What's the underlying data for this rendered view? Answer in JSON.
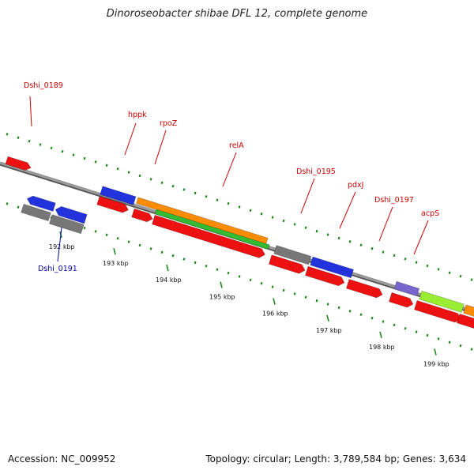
{
  "title": "Dinoroseobacter shibae DFL 12, complete genome",
  "footer": {
    "accession": "Accession: NC_009952",
    "summary": "Topology: circular; Length: 3,789,584 bp; Genes: 3,634"
  },
  "colors": {
    "backbone": "#9a9a9a",
    "tick": "#1f8a1f",
    "label_default": "#cc0000",
    "label_highlight": "#0000aa",
    "cds": "#ee1111",
    "trna": "#2233dd",
    "pseudo": "#777777",
    "rrna": "#ff8c00",
    "misc": "#33bb33",
    "other": "#7766cc",
    "lime": "#99ee33"
  },
  "scale": {
    "ticks": [
      {
        "label": "192 kbp"
      },
      {
        "label": "193 kbp"
      },
      {
        "label": "194 kbp"
      },
      {
        "label": "195 kbp"
      },
      {
        "label": "196 kbp"
      },
      {
        "label": "197 kbp"
      },
      {
        "label": "198 kbp"
      },
      {
        "label": "199 kbp"
      }
    ]
  },
  "labels": [
    {
      "text": "Dshi_0189",
      "color": "#cc0000"
    },
    {
      "text": "hppk",
      "color": "#cc0000"
    },
    {
      "text": "rpoZ",
      "color": "#cc0000"
    },
    {
      "text": "relA",
      "color": "#cc0000"
    },
    {
      "text": "Dshi_0195",
      "color": "#cc0000"
    },
    {
      "text": "pdxJ",
      "color": "#cc0000"
    },
    {
      "text": "Dshi_0197",
      "color": "#cc0000"
    },
    {
      "text": "acpS",
      "color": "#cc0000"
    },
    {
      "text": "Dshi_0191",
      "color": "#0000aa"
    }
  ]
}
